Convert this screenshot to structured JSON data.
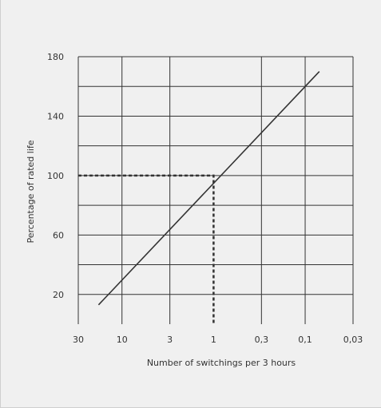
{
  "chart_data": {
    "type": "line",
    "title": "",
    "xlabel": "Number of switchings per 3 hours",
    "ylabel": "Percentage of rated life",
    "x_scale": "log-reversed",
    "xlim": [
      30,
      0.03
    ],
    "ylim": [
      0,
      180
    ],
    "grid": true,
    "x_ticks": [
      {
        "value": 30,
        "label": "30"
      },
      {
        "value": 10,
        "label": "10"
      },
      {
        "value": 3,
        "label": "3"
      },
      {
        "value": 1,
        "label": "1"
      },
      {
        "value": 0.3,
        "label": "0,3"
      },
      {
        "value": 0.1,
        "label": "0,1"
      },
      {
        "value": 0.03,
        "label": "0,03"
      }
    ],
    "y_ticks": [
      {
        "value": 20,
        "label": "20"
      },
      {
        "value": 60,
        "label": "60"
      },
      {
        "value": 100,
        "label": "100"
      },
      {
        "value": 140,
        "label": "140"
      },
      {
        "value": 180,
        "label": "180"
      }
    ],
    "y_gridlines": [
      20,
      40,
      60,
      80,
      100,
      120,
      140,
      160,
      180
    ],
    "series": [
      {
        "points": [
          {
            "x": 18,
            "y": 13
          },
          {
            "x": 0.07,
            "y": 170
          }
        ],
        "color": "#333333",
        "style": "solid"
      }
    ],
    "reference_lines": [
      {
        "points": [
          {
            "x": 30,
            "y": 100
          },
          {
            "x": 1,
            "y": 100
          },
          {
            "x": 1,
            "y": 0
          }
        ],
        "style": "dashed",
        "color": "#333333"
      }
    ],
    "colors": {
      "background": "#f0f0f0",
      "line": "#333333",
      "grid": "#333333"
    }
  }
}
